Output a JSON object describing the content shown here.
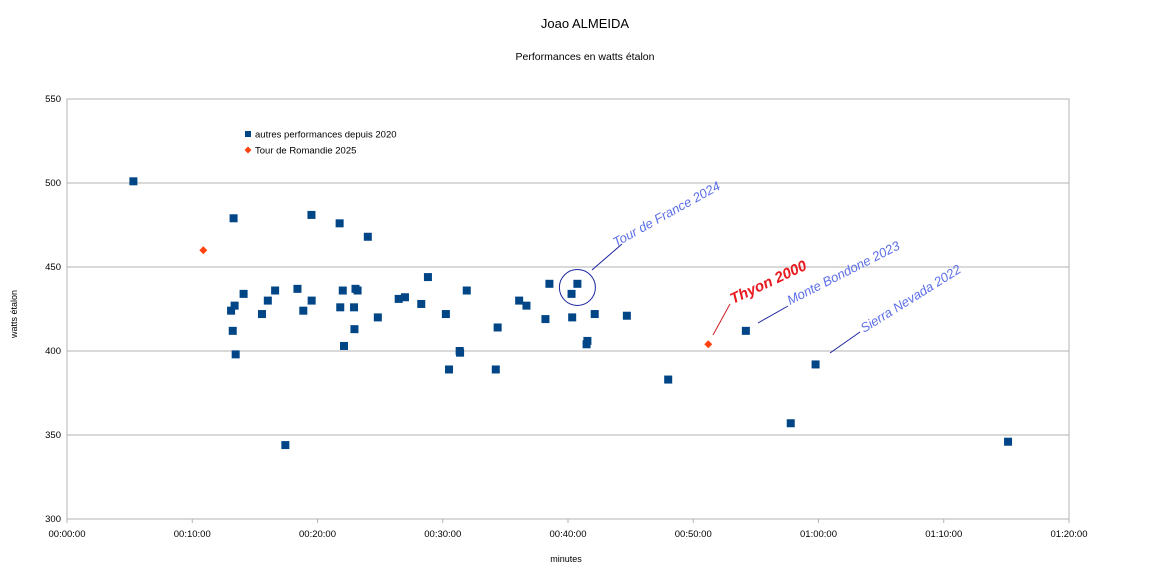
{
  "chart_data": {
    "type": "scatter",
    "title": "Joao ALMEIDA",
    "subtitle": "Performances en watts étalon",
    "xlabel": "minutes",
    "ylabel": "watts étalon",
    "xlim_seconds": [
      0,
      4800
    ],
    "ylim": [
      300,
      550
    ],
    "x_ticks": [
      "00:00:00",
      "00:10:00",
      "00:20:00",
      "00:30:00",
      "00:40:00",
      "00:50:00",
      "01:00:00",
      "01:10:00",
      "01:20:00"
    ],
    "y_ticks": [
      "300",
      "350",
      "400",
      "450",
      "500",
      "550"
    ],
    "grid": "horizontal",
    "legend_position": "top-left",
    "series": [
      {
        "name": "autres performances depuis 2020",
        "color": "#004586",
        "marker": "square",
        "points": [
          {
            "x": 318,
            "y": 501
          },
          {
            "x": 786,
            "y": 424
          },
          {
            "x": 794,
            "y": 412
          },
          {
            "x": 798,
            "y": 479
          },
          {
            "x": 803,
            "y": 427
          },
          {
            "x": 808,
            "y": 398
          },
          {
            "x": 846,
            "y": 434
          },
          {
            "x": 934,
            "y": 422
          },
          {
            "x": 962,
            "y": 430
          },
          {
            "x": 997,
            "y": 436
          },
          {
            "x": 1046,
            "y": 344
          },
          {
            "x": 1104,
            "y": 437
          },
          {
            "x": 1132,
            "y": 424
          },
          {
            "x": 1171,
            "y": 481
          },
          {
            "x": 1172,
            "y": 430
          },
          {
            "x": 1306,
            "y": 476
          },
          {
            "x": 1309,
            "y": 426
          },
          {
            "x": 1321,
            "y": 436
          },
          {
            "x": 1327,
            "y": 403
          },
          {
            "x": 1375,
            "y": 426
          },
          {
            "x": 1377,
            "y": 413
          },
          {
            "x": 1382,
            "y": 437
          },
          {
            "x": 1392,
            "y": 436
          },
          {
            "x": 1441,
            "y": 468
          },
          {
            "x": 1489,
            "y": 420
          },
          {
            "x": 1589,
            "y": 431
          },
          {
            "x": 1619,
            "y": 432
          },
          {
            "x": 1697,
            "y": 428
          },
          {
            "x": 1729,
            "y": 444
          },
          {
            "x": 1815,
            "y": 422
          },
          {
            "x": 1830,
            "y": 389
          },
          {
            "x": 1881,
            "y": 400
          },
          {
            "x": 1883,
            "y": 399
          },
          {
            "x": 1915,
            "y": 436
          },
          {
            "x": 2054,
            "y": 389
          },
          {
            "x": 2063,
            "y": 414
          },
          {
            "x": 2166,
            "y": 430
          },
          {
            "x": 2201,
            "y": 427
          },
          {
            "x": 2292,
            "y": 419
          },
          {
            "x": 2311,
            "y": 440
          },
          {
            "x": 2417,
            "y": 434
          },
          {
            "x": 2420,
            "y": 420
          },
          {
            "x": 2445,
            "y": 440
          },
          {
            "x": 2489,
            "y": 404
          },
          {
            "x": 2493,
            "y": 406
          },
          {
            "x": 2528,
            "y": 422
          },
          {
            "x": 2682,
            "y": 421
          },
          {
            "x": 2880,
            "y": 383
          },
          {
            "x": 3252,
            "y": 412
          },
          {
            "x": 3467,
            "y": 357
          },
          {
            "x": 3586,
            "y": 392
          },
          {
            "x": 4508,
            "y": 346
          }
        ]
      },
      {
        "name": "Tour de Romandie 2025",
        "color": "#ff420e",
        "marker": "diamond",
        "points": [
          {
            "x": 653,
            "y": 460
          },
          {
            "x": 3072,
            "y": 404
          }
        ]
      }
    ],
    "annotations": [
      {
        "text": "Tour de France 2024",
        "highlight": false,
        "x": 2445,
        "y": 439
      },
      {
        "text": "Thyon 2000",
        "highlight": true,
        "x": 3072,
        "y": 404
      },
      {
        "text": "Monte Bondone 2023",
        "highlight": false,
        "x": 3252,
        "y": 412
      },
      {
        "text": "Sierra Nevada 2022",
        "highlight": false,
        "x": 3586,
        "y": 392
      }
    ]
  }
}
